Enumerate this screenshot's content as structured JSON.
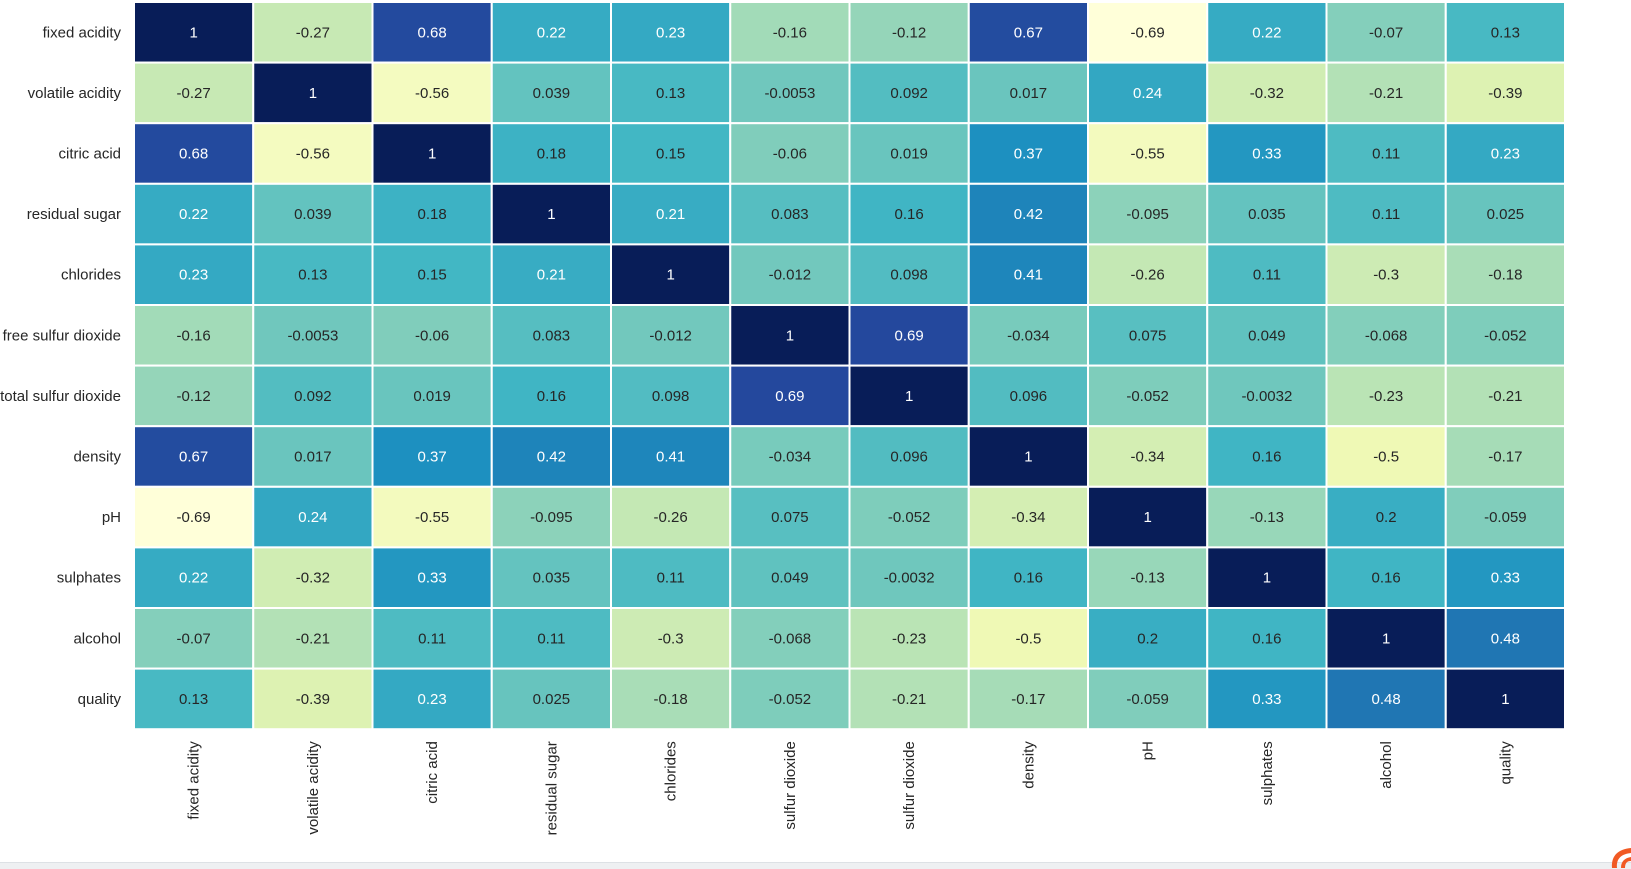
{
  "chart_data": {
    "type": "heatmap",
    "title": "",
    "xlabel": "",
    "ylabel": "",
    "colormap": "YlGnBu",
    "vmin": -0.69,
    "vmax": 1,
    "cell_border_color": "#ffffff",
    "annotated": true,
    "colorbar": false,
    "row_labels": [
      "fixed acidity",
      "volatile acidity",
      "citric acid",
      "residual sugar",
      "chlorides",
      "free sulfur dioxide",
      "total sulfur dioxide",
      "density",
      "pH",
      "sulphates",
      "alcohol",
      "quality"
    ],
    "col_labels": [
      "fixed acidity",
      "volatile acidity",
      "citric acid",
      "residual sugar",
      "chlorides",
      "sulfur dioxide",
      "sulfur dioxide",
      "density",
      "pH",
      "sulphates",
      "alcohol",
      "quality"
    ],
    "values": [
      [
        1,
        -0.27,
        0.68,
        0.22,
        0.23,
        -0.16,
        -0.12,
        0.67,
        -0.69,
        0.22,
        -0.07,
        0.13
      ],
      [
        -0.27,
        1,
        -0.56,
        0.039,
        0.13,
        -0.0053,
        0.092,
        0.017,
        0.24,
        -0.32,
        -0.21,
        -0.39
      ],
      [
        0.68,
        -0.56,
        1,
        0.18,
        0.15,
        -0.06,
        0.019,
        0.37,
        -0.55,
        0.33,
        0.11,
        0.23
      ],
      [
        0.22,
        0.039,
        0.18,
        1,
        0.21,
        0.083,
        0.16,
        0.42,
        -0.095,
        0.035,
        0.11,
        0.025
      ],
      [
        0.23,
        0.13,
        0.15,
        0.21,
        1,
        -0.012,
        0.098,
        0.41,
        -0.26,
        0.11,
        -0.3,
        -0.18
      ],
      [
        -0.16,
        -0.0053,
        -0.06,
        0.083,
        -0.012,
        1,
        0.69,
        -0.034,
        0.075,
        0.049,
        -0.068,
        -0.052
      ],
      [
        -0.12,
        0.092,
        0.019,
        0.16,
        0.098,
        0.69,
        1,
        0.096,
        -0.052,
        -0.0032,
        -0.23,
        -0.21
      ],
      [
        0.67,
        0.017,
        0.37,
        0.42,
        0.41,
        -0.034,
        0.096,
        1,
        -0.34,
        0.16,
        -0.5,
        -0.17
      ],
      [
        -0.69,
        0.24,
        -0.55,
        -0.095,
        -0.26,
        0.075,
        -0.052,
        -0.34,
        1,
        -0.13,
        0.2,
        -0.059
      ],
      [
        0.22,
        -0.32,
        0.33,
        0.035,
        0.11,
        0.049,
        -0.0032,
        0.16,
        -0.13,
        1,
        0.16,
        0.33
      ],
      [
        -0.07,
        -0.21,
        0.11,
        0.11,
        -0.3,
        -0.068,
        -0.23,
        -0.5,
        0.2,
        0.16,
        1,
        0.48
      ],
      [
        0.13,
        -0.39,
        0.23,
        0.025,
        -0.18,
        -0.052,
        -0.21,
        -0.17,
        -0.059,
        0.33,
        0.48,
        1
      ]
    ]
  },
  "icons": {
    "corner_badge": "app-logo-icon"
  },
  "colors": {
    "corner_badge": "#f15a24"
  }
}
